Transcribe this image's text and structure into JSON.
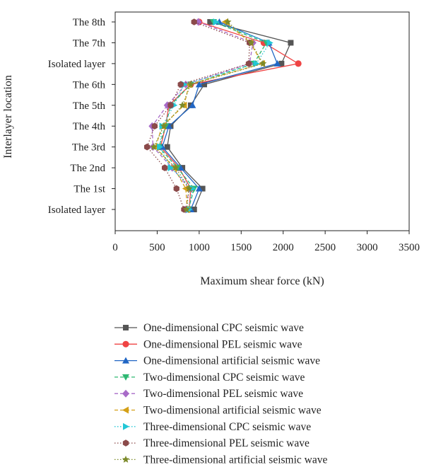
{
  "chart_data": {
    "type": "line",
    "orientation": "horizontal",
    "title": "",
    "xlabel": "Maximum shear force (kN)",
    "ylabel": "Interlayer location",
    "xlim": [
      0,
      3500
    ],
    "xticks": [
      0,
      500,
      1000,
      1500,
      2000,
      2500,
      3000,
      3500
    ],
    "categories": [
      "Isolated layer",
      "The 1st",
      "The 2nd",
      "The 3rd",
      "The 4th",
      "The 5th",
      "The 6th",
      "Isolated layer",
      "The 7th",
      "The 8th"
    ],
    "grid": false,
    "legend_position": "bottom",
    "series": [
      {
        "name": "One-dimensional CPC seismic wave",
        "color": "#555555",
        "marker": "square",
        "dash": "solid",
        "values": [
          940,
          1040,
          800,
          620,
          660,
          900,
          1060,
          1980,
          2090,
          1130
        ]
      },
      {
        "name": "One-dimensional PEL seismic wave",
        "color": "#ef4444",
        "marker": "circle",
        "dash": "solid",
        "values": [
          880,
          900,
          760,
          540,
          600,
          640,
          900,
          2180,
          1770,
          1000
        ]
      },
      {
        "name": "One-dimensional artificial seismic wave",
        "color": "#2166c4",
        "marker": "triangle-up",
        "dash": "solid",
        "values": [
          900,
          1000,
          780,
          560,
          640,
          920,
          1000,
          1930,
          1830,
          1240
        ]
      },
      {
        "name": "Two-dimensional CPC seismic wave",
        "color": "#2eb872",
        "marker": "triangle-down",
        "dash": "dashed",
        "values": [
          870,
          940,
          740,
          520,
          600,
          660,
          900,
          1650,
          1800,
          1170
        ]
      },
      {
        "name": "Two-dimensional PEL seismic wave",
        "color": "#a86bc8",
        "marker": "diamond",
        "dash": "dashed",
        "values": [
          840,
          880,
          680,
          450,
          440,
          620,
          840,
          1600,
          1640,
          990
        ]
      },
      {
        "name": "Two-dimensional artificial seismic wave",
        "color": "#d4a017",
        "marker": "triangle-left",
        "dash": "dashed",
        "values": [
          860,
          840,
          700,
          480,
          560,
          820,
          880,
          1750,
          1610,
          1310
        ]
      },
      {
        "name": "Three-dimensional CPC seismic wave",
        "color": "#22c7d6",
        "marker": "triangle-right",
        "dash": "dotted",
        "values": [
          880,
          920,
          660,
          530,
          560,
          700,
          820,
          1680,
          1840,
          1200
        ]
      },
      {
        "name": "Three-dimensional PEL seismic wave",
        "color": "#8b4a4a",
        "marker": "hexagon",
        "dash": "dotted",
        "values": [
          820,
          730,
          590,
          380,
          470,
          660,
          780,
          1590,
          1600,
          940
        ]
      },
      {
        "name": "Three-dimensional artificial seismic wave",
        "color": "#7c8a2a",
        "marker": "star",
        "dash": "dotted",
        "values": [
          850,
          880,
          720,
          460,
          580,
          800,
          900,
          1760,
          1620,
          1340
        ]
      }
    ]
  }
}
